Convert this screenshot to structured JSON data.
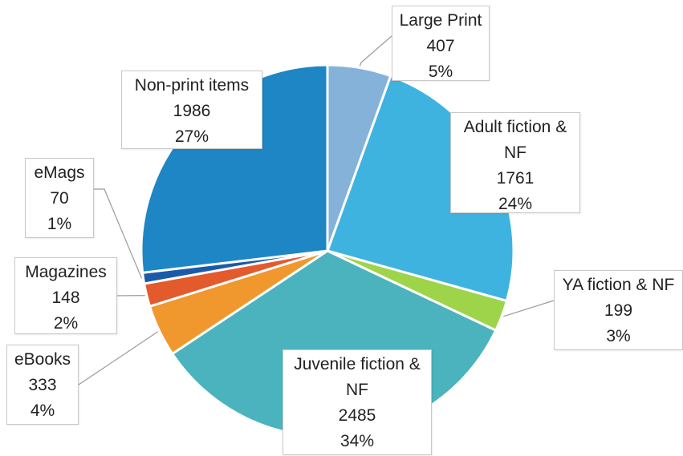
{
  "chart_data": {
    "type": "pie",
    "title": "",
    "slices": [
      {
        "name": "Large Print",
        "value": 407,
        "percent": "5%",
        "color": "#85b2d8"
      },
      {
        "name_lines": [
          "Adult fiction &",
          "NF"
        ],
        "name": "Adult fiction & NF",
        "value": 1761,
        "percent": "24%",
        "color": "#3fb3e0"
      },
      {
        "name": "YA fiction & NF",
        "value": 199,
        "percent": "3%",
        "color": "#9ed44a"
      },
      {
        "name_lines": [
          "Juvenile fiction &",
          "NF"
        ],
        "name": "Juvenile fiction & NF",
        "value": 2485,
        "percent": "34%",
        "color": "#4bb3be"
      },
      {
        "name": "eBooks",
        "value": 333,
        "percent": "4%",
        "color": "#f0982e"
      },
      {
        "name": "Magazines",
        "value": 148,
        "percent": "2%",
        "color": "#e35a2c"
      },
      {
        "name": "eMags",
        "value": 70,
        "percent": "1%",
        "color": "#1b5aa8"
      },
      {
        "name": "Non-print items",
        "value": 1986,
        "percent": "27%",
        "color": "#1e86c4"
      }
    ]
  }
}
